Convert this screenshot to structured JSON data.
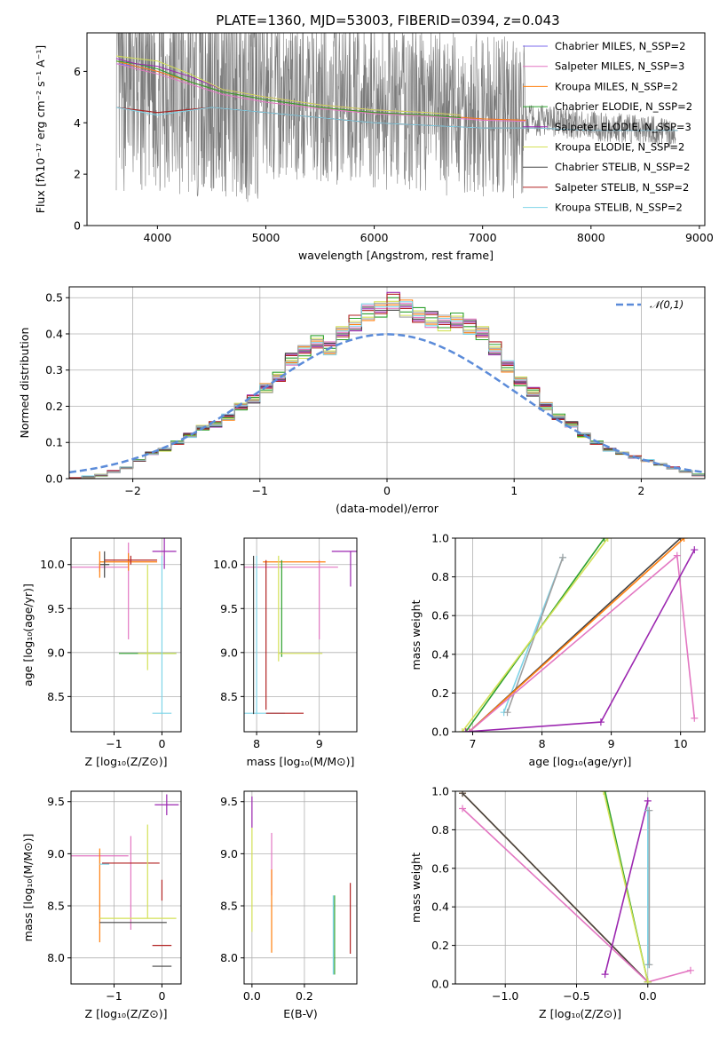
{
  "chart_data": [
    {
      "id": "spectrum",
      "type": "line",
      "title": "PLATE=1360, MJD=53003, FIBERID=0394, z=0.043",
      "xlabel": "wavelength [Angstrom, rest frame]",
      "ylabel": "Flux [fλ10⁻¹⁷ erg cm⁻² s⁻¹ A⁻¹]",
      "xlim": [
        3350,
        9050
      ],
      "ylim": [
        0,
        7.5
      ],
      "xticks": [
        "4000",
        "5000",
        "6000",
        "7000",
        "8000",
        "9000"
      ],
      "yticks": [
        "0",
        "2",
        "4",
        "6"
      ],
      "data_range": [
        3620,
        8780
      ],
      "legend": [
        "Chabrier MILES, N_SSP=2",
        "Salpeter MILES, N_SSP=3",
        "Kroupa MILES, N_SSP=2",
        "Chabrier ELODIE, N_SSP=2",
        "Salpeter ELODIE, N_SSP=3",
        "Kroupa ELODIE, N_SSP=2",
        "Chabrier STELIB, N_SSP=2",
        "Salpeter STELIB, N_SSP=2",
        "Kroupa STELIB, N_SSP=2"
      ],
      "legend_loc": "upper right",
      "models": [
        {
          "name": "Chabrier MILES",
          "color": "#7b68ee",
          "x": [
            3620,
            3800,
            4000,
            4300,
            4600,
            5000,
            5500,
            6000,
            6500,
            7000,
            7400
          ],
          "y": [
            6.3,
            6.2,
            6.0,
            5.6,
            5.2,
            4.9,
            4.6,
            4.4,
            4.3,
            4.15,
            4.1
          ]
        },
        {
          "name": "Salpeter MILES",
          "color": "#e377c2",
          "x": [
            3620,
            3800,
            4000,
            4300,
            4600,
            5000,
            5500,
            6000,
            6500,
            7000,
            7400
          ],
          "y": [
            6.3,
            6.1,
            5.9,
            5.5,
            5.1,
            4.8,
            4.55,
            4.35,
            4.25,
            4.1,
            4.05
          ]
        },
        {
          "name": "Kroupa MILES",
          "color": "#ff7f0e",
          "x": [
            3620,
            3800,
            4000,
            4300,
            4600,
            5000,
            5500,
            6000,
            6500,
            7000,
            7400
          ],
          "y": [
            6.4,
            6.2,
            6.0,
            5.6,
            5.2,
            4.9,
            4.6,
            4.4,
            4.3,
            4.15,
            4.1
          ]
        },
        {
          "name": "Chabrier ELODIE",
          "color": "#2ca02c",
          "x": [
            3620,
            3800,
            4000,
            4300,
            4600,
            5000,
            5500,
            6000,
            6500,
            6800
          ],
          "y": [
            6.4,
            6.3,
            6.1,
            5.6,
            5.2,
            4.9,
            4.6,
            4.4,
            4.3,
            4.2
          ]
        },
        {
          "name": "Salpeter ELODIE",
          "color": "#9c27b0",
          "x": [
            3620,
            3800,
            4000,
            4300,
            4600,
            5000,
            5500,
            6000,
            6500,
            6800
          ],
          "y": [
            6.5,
            6.3,
            6.2,
            5.8,
            5.3,
            5.0,
            4.7,
            4.5,
            4.4,
            4.3
          ]
        },
        {
          "name": "Kroupa ELODIE",
          "color": "#d4e157",
          "x": [
            3620,
            3800,
            4000,
            4300,
            4600,
            5000,
            5500,
            6000,
            6500,
            6800
          ],
          "y": [
            6.6,
            6.5,
            6.4,
            5.9,
            5.3,
            5.0,
            4.7,
            4.5,
            4.4,
            4.3
          ]
        },
        {
          "name": "Chabrier STELIB",
          "color": "#444444",
          "x": [
            3620,
            4000,
            4500,
            5000,
            5500,
            6000,
            6500,
            7000,
            7500,
            8000,
            8500,
            8800
          ],
          "y": [
            4.6,
            4.4,
            4.6,
            4.4,
            4.2,
            4.0,
            3.9,
            3.8,
            3.8,
            3.7,
            3.7,
            3.7
          ]
        },
        {
          "name": "Salpeter STELIB",
          "color": "#b22222",
          "x": [
            3620,
            4000,
            4500,
            5000,
            5500,
            6000,
            6500,
            7000,
            7500,
            8000,
            8500,
            8800
          ],
          "y": [
            4.6,
            4.4,
            4.6,
            4.4,
            4.2,
            4.0,
            3.9,
            3.8,
            3.8,
            3.7,
            3.7,
            3.7
          ]
        },
        {
          "name": "Kroupa STELIB",
          "color": "#7fd4e8",
          "x": [
            3620,
            4000,
            4500,
            5000,
            5500,
            6000,
            6500,
            7000,
            7500,
            8000,
            8500,
            8800
          ],
          "y": [
            4.6,
            4.3,
            4.6,
            4.4,
            4.2,
            4.0,
            3.9,
            3.8,
            3.8,
            3.7,
            3.7,
            3.7
          ]
        }
      ]
    },
    {
      "id": "residuals",
      "type": "bar",
      "xlabel": "(data-model)/error",
      "ylabel": "Normed distribution",
      "xlim": [
        -2.5,
        2.5
      ],
      "ylim": [
        0,
        0.53
      ],
      "xticks": [
        "−2",
        "−1",
        "0",
        "1",
        "2"
      ],
      "yticks": [
        "0.0",
        "0.1",
        "0.2",
        "0.3",
        "0.4",
        "0.5"
      ],
      "legend": [
        "𝒩(0,1)"
      ],
      "legend_loc": "upper right",
      "bin_edges_start": -2.5,
      "bin_width": 0.1,
      "reference_curve": {
        "name": "𝒩(0,1)",
        "mean": 0,
        "sigma": 1,
        "color": "#5b8bd9"
      },
      "hist": [
        0.0,
        0.005,
        0.01,
        0.02,
        0.03,
        0.05,
        0.07,
        0.08,
        0.1,
        0.12,
        0.14,
        0.15,
        0.17,
        0.2,
        0.22,
        0.25,
        0.28,
        0.33,
        0.35,
        0.38,
        0.36,
        0.4,
        0.43,
        0.46,
        0.47,
        0.49,
        0.47,
        0.45,
        0.44,
        0.43,
        0.44,
        0.42,
        0.4,
        0.36,
        0.31,
        0.27,
        0.24,
        0.2,
        0.17,
        0.15,
        0.12,
        0.1,
        0.08,
        0.07,
        0.06,
        0.05,
        0.04,
        0.03,
        0.02,
        0.01
      ],
      "series_colors": [
        "#9c27b0",
        "#e377c2",
        "#ff7f0e",
        "#d4e157",
        "#2ca02c",
        "#b22222",
        "#444444",
        "#7fd4e8",
        "#a0a0a0"
      ]
    },
    {
      "id": "age_vs_Z",
      "type": "scatter",
      "xlabel": "Z [log₁₀(Z/Z⊙)]",
      "ylabel": "age  [log₁₀(age/yr)]",
      "xlim": [
        -1.9,
        0.4
      ],
      "ylim": [
        8.1,
        10.3
      ],
      "xticks": [
        "−1",
        "0"
      ],
      "yticks": [
        "8.5",
        "9.0",
        "9.5",
        "10.0"
      ],
      "points": [
        {
          "color": "#9c27b0",
          "x": 0.05,
          "y": 10.15,
          "xerr": 0.25,
          "yerr": 0.2
        },
        {
          "color": "#e377c2",
          "x": -1.3,
          "y": 9.97,
          "xerr": 0.6,
          "yerr": 0.05
        },
        {
          "color": "#e377c2",
          "x": -0.7,
          "y": 9.7,
          "xerr": 0.0,
          "yerr": 0.55
        },
        {
          "color": "#ff7f0e",
          "x": -0.7,
          "y": 10.03,
          "xerr": 0.6,
          "yerr": 0.1
        },
        {
          "color": "#2ca02c",
          "x": -0.3,
          "y": 8.99,
          "xerr": 0.6,
          "yerr": 0.0
        },
        {
          "color": "#d4e157",
          "x": -0.3,
          "y": 9.4,
          "xerr": 0.0,
          "yerr": 0.6
        },
        {
          "color": "#d4e157",
          "x": -0.1,
          "y": 8.99,
          "xerr": 0.4,
          "yerr": 0.0
        },
        {
          "color": "#444444",
          "x": -1.2,
          "y": 10.0,
          "xerr": 0.1,
          "yerr": 0.15
        },
        {
          "color": "#7fd4e8",
          "x": 0.0,
          "y": 8.31,
          "xerr": 0.2,
          "yerr": 0.0
        },
        {
          "color": "#7fd4e8",
          "x": 0.0,
          "y": 9.2,
          "xerr": 0.0,
          "yerr": 0.9
        },
        {
          "color": "#b22222",
          "x": -0.65,
          "y": 10.05,
          "xerr": 0.55,
          "yerr": 0.05
        },
        {
          "color": "#ff7f0e",
          "x": -1.3,
          "y": 10.0,
          "xerr": 0.0,
          "yerr": 0.15
        }
      ]
    },
    {
      "id": "age_vs_mass",
      "type": "scatter",
      "xlabel": "mass [log₁₀(M/M⊙)]",
      "ylabel": "",
      "xlim": [
        7.8,
        9.6
      ],
      "ylim": [
        8.1,
        10.3
      ],
      "xticks": [
        "8",
        "9"
      ],
      "yticks": [
        "8.5",
        "9.0",
        "9.5",
        "10.0"
      ],
      "points": [
        {
          "color": "#9c27b0",
          "x": 9.4,
          "y": 10.15,
          "xerr": 0.2,
          "yerr": 0.0
        },
        {
          "color": "#9c27b0",
          "x": 9.5,
          "y": 9.95,
          "xerr": 0.0,
          "yerr": 0.2
        },
        {
          "color": "#e377c2",
          "x": 8.5,
          "y": 9.97,
          "xerr": 0.8,
          "yerr": 0.0
        },
        {
          "color": "#e377c2",
          "x": 9.0,
          "y": 9.6,
          "xerr": 0.0,
          "yerr": 0.45
        },
        {
          "color": "#ff7f0e",
          "x": 8.6,
          "y": 10.03,
          "xerr": 0.5,
          "yerr": 0.0
        },
        {
          "color": "#2ca02c",
          "x": 8.4,
          "y": 9.5,
          "xerr": 0.0,
          "yerr": 0.55
        },
        {
          "color": "#d4e157",
          "x": 8.7,
          "y": 8.99,
          "xerr": 0.35,
          "yerr": 0.0
        },
        {
          "color": "#d4e157",
          "x": 8.35,
          "y": 9.5,
          "xerr": 0.0,
          "yerr": 0.6
        },
        {
          "color": "#7fd4e8",
          "x": 8.0,
          "y": 9.2,
          "xerr": 0.0,
          "yerr": 0.9
        },
        {
          "color": "#7fd4e8",
          "x": 8.1,
          "y": 8.31,
          "xerr": 0.35,
          "yerr": 0.0
        },
        {
          "color": "#b22222",
          "x": 8.15,
          "y": 9.2,
          "xerr": 0.0,
          "yerr": 0.85
        },
        {
          "color": "#b22222",
          "x": 8.45,
          "y": 8.31,
          "xerr": 0.3,
          "yerr": 0.0
        },
        {
          "color": "#444444",
          "x": 7.95,
          "y": 9.2,
          "xerr": 0.0,
          "yerr": 0.9
        }
      ]
    },
    {
      "id": "massweight_vs_age",
      "type": "line",
      "xlabel": "age  [log₁₀(age/yr)]",
      "ylabel": "mass weight",
      "xlim": [
        6.75,
        10.35
      ],
      "ylim": [
        0,
        1
      ],
      "xticks": [
        "7",
        "8",
        "9",
        "10"
      ],
      "yticks": [
        "0.0",
        "0.2",
        "0.4",
        "0.6",
        "0.8",
        "1.0"
      ],
      "series": [
        {
          "color": "#7fd4e8",
          "x": [
            7.45,
            8.3
          ],
          "y": [
            0.1,
            0.9
          ]
        },
        {
          "color": "#a0a0a0",
          "x": [
            7.5,
            8.3
          ],
          "y": [
            0.1,
            0.9
          ]
        },
        {
          "color": "#2ca02c",
          "x": [
            6.9,
            8.9
          ],
          "y": [
            0.0,
            1.0
          ]
        },
        {
          "color": "#d4e157",
          "x": [
            6.85,
            8.95
          ],
          "y": [
            0.0,
            1.0
          ]
        },
        {
          "color": "#444444",
          "x": [
            6.95,
            10.0
          ],
          "y": [
            0.0,
            1.0
          ]
        },
        {
          "color": "#ff7f0e",
          "x": [
            6.95,
            10.05
          ],
          "y": [
            0.0,
            1.0
          ]
        },
        {
          "color": "#e377c2",
          "x": [
            6.95,
            9.95,
            10.2
          ],
          "y": [
            0.0,
            0.91,
            0.07
          ]
        },
        {
          "color": "#9c27b0",
          "x": [
            6.9,
            8.85,
            10.2
          ],
          "y": [
            0.0,
            0.05,
            0.94
          ]
        }
      ]
    },
    {
      "id": "mass_vs_Z",
      "type": "scatter",
      "xlabel": "Z [log₁₀(Z/Z⊙)]",
      "ylabel": "mass [log₁₀(M/M⊙)]",
      "xlim": [
        -1.9,
        0.4
      ],
      "ylim": [
        7.75,
        9.6
      ],
      "xticks": [
        "−1",
        "0"
      ],
      "yticks": [
        "8.0",
        "8.5",
        "9.0",
        "9.5"
      ],
      "points": [
        {
          "color": "#9c27b0",
          "x": 0.1,
          "y": 9.47,
          "xerr": 0.25,
          "yerr": 0.1
        },
        {
          "color": "#e377c2",
          "x": -1.3,
          "y": 8.98,
          "xerr": 0.6,
          "yerr": 0.0
        },
        {
          "color": "#e377c2",
          "x": -0.65,
          "y": 8.72,
          "xerr": 0.0,
          "yerr": 0.45
        },
        {
          "color": "#ff7f0e",
          "x": -1.3,
          "y": 8.6,
          "xerr": 0.0,
          "yerr": 0.45
        },
        {
          "color": "#b22222",
          "x": -0.65,
          "y": 8.91,
          "xerr": 0.6,
          "yerr": 0.0
        },
        {
          "color": "#d4e157",
          "x": -0.3,
          "y": 8.83,
          "xerr": 0.0,
          "yerr": 0.45
        },
        {
          "color": "#d4e157",
          "x": -0.5,
          "y": 8.38,
          "xerr": 0.8,
          "yerr": 0.0
        },
        {
          "color": "#444444",
          "x": -0.6,
          "y": 8.34,
          "xerr": 0.7,
          "yerr": 0.0
        },
        {
          "color": "#b22222",
          "x": 0.0,
          "y": 8.12,
          "xerr": 0.2,
          "yerr": 0.0
        },
        {
          "color": "#b22222",
          "x": 0.0,
          "y": 8.65,
          "xerr": 0.0,
          "yerr": 0.1
        },
        {
          "color": "#444444",
          "x": 0.0,
          "y": 7.92,
          "xerr": 0.2,
          "yerr": 0.0
        },
        {
          "color": "#7fd4e8",
          "x": -1.2,
          "y": 8.9,
          "xerr": 0.1,
          "yerr": 0.0
        }
      ]
    },
    {
      "id": "mass_vs_EBV",
      "type": "scatter",
      "xlabel": "E(B-V)",
      "ylabel": "",
      "xlim": [
        -0.03,
        0.4
      ],
      "ylim": [
        7.75,
        9.6
      ],
      "xticks": [
        "0.0",
        "0.2"
      ],
      "yticks": [
        "8.0",
        "8.5",
        "9.0",
        "9.5"
      ],
      "points": [
        {
          "color": "#9c27b0",
          "x": 0.0,
          "y": 9.4,
          "xerr": 0.0,
          "yerr": 0.15
        },
        {
          "color": "#d4e157",
          "x": 0.0,
          "y": 8.75,
          "xerr": 0.0,
          "yerr": 0.5
        },
        {
          "color": "#e377c2",
          "x": 0.075,
          "y": 8.9,
          "xerr": 0.0,
          "yerr": 0.3
        },
        {
          "color": "#ff7f0e",
          "x": 0.075,
          "y": 8.45,
          "xerr": 0.0,
          "yerr": 0.4
        },
        {
          "color": "#2ca02c",
          "x": 0.315,
          "y": 8.22,
          "xerr": 0.0,
          "yerr": 0.38
        },
        {
          "color": "#7fd4e8",
          "x": 0.31,
          "y": 8.22,
          "xerr": 0.0,
          "yerr": 0.38
        },
        {
          "color": "#b22222",
          "x": 0.375,
          "y": 8.38,
          "xerr": 0.0,
          "yerr": 0.34
        }
      ]
    },
    {
      "id": "massweight_vs_Z",
      "type": "line",
      "xlabel": "Z [log₁₀(Z/Z⊙)]",
      "ylabel": "mass weight",
      "xlim": [
        -1.35,
        0.4
      ],
      "ylim": [
        0,
        1
      ],
      "xticks": [
        "−1.0",
        "−0.5",
        "0.0"
      ],
      "yticks": [
        "0.0",
        "0.2",
        "0.4",
        "0.6",
        "0.8",
        "1.0"
      ],
      "series": [
        {
          "color": "#ff7f0e",
          "x": [
            -1.3,
            0.0
          ],
          "y": [
            0.99,
            0.01
          ]
        },
        {
          "color": "#444444",
          "x": [
            -1.3,
            0.0
          ],
          "y": [
            0.99,
            0.01
          ]
        },
        {
          "color": "#e377c2",
          "x": [
            -1.3,
            0.0,
            0.3
          ],
          "y": [
            0.91,
            0.01,
            0.07
          ]
        },
        {
          "color": "#2ca02c",
          "x": [
            -0.3,
            0.0
          ],
          "y": [
            1.0,
            0.01
          ]
        },
        {
          "color": "#d4e157",
          "x": [
            -0.31,
            0.0
          ],
          "y": [
            1.0,
            0.01
          ]
        },
        {
          "color": "#9c27b0",
          "x": [
            -0.3,
            0.0
          ],
          "y": [
            0.05,
            0.95
          ]
        },
        {
          "color": "#7fd4e8",
          "x": [
            0.0,
            0.0
          ],
          "y": [
            0.1,
            0.9
          ]
        },
        {
          "color": "#a0a0a0",
          "x": [
            0.01,
            0.01
          ],
          "y": [
            0.1,
            0.9
          ]
        }
      ]
    }
  ]
}
